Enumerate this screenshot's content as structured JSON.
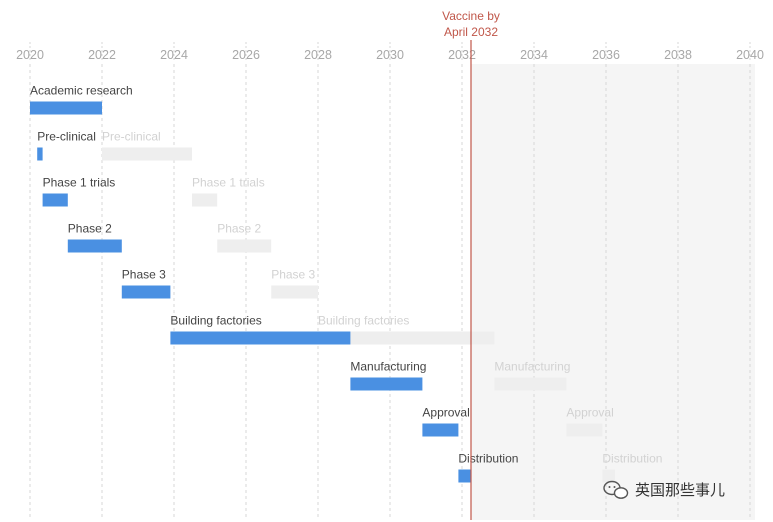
{
  "chart_data": {
    "type": "gantt",
    "x_axis": {
      "min": 2020,
      "max": 2040,
      "ticks": [
        2020,
        2022,
        2024,
        2026,
        2028,
        2030,
        2032,
        2034,
        2036,
        2038,
        2040
      ],
      "grid": "dashed vertical"
    },
    "marker": {
      "year": 2032.25,
      "label_lines": [
        "Vaccine by",
        "April 2032"
      ],
      "color": "#c0574a",
      "shade_after": true
    },
    "series": [
      {
        "key": "vaccine",
        "color": "#4a90e2"
      },
      {
        "key": "ghost",
        "color": "#eeeeee"
      }
    ],
    "stages": [
      {
        "name": "Academic research",
        "vaccine": [
          2020,
          2022
        ],
        "ghost": null
      },
      {
        "name": "Pre-clinical",
        "vaccine": [
          2020.2,
          2020.35
        ],
        "ghost": [
          2022,
          2024.5
        ]
      },
      {
        "name": "Phase 1 trials",
        "vaccine": [
          2020.35,
          2021.05
        ],
        "ghost": [
          2024.5,
          2025.2
        ]
      },
      {
        "name": "Phase 2",
        "vaccine": [
          2021.05,
          2022.55
        ],
        "ghost": [
          2025.2,
          2026.7
        ]
      },
      {
        "name": "Phase 3",
        "vaccine": [
          2022.55,
          2023.9
        ],
        "ghost": [
          2026.7,
          2028
        ]
      },
      {
        "name": "Building factories",
        "vaccine": [
          2023.9,
          2028.9
        ],
        "ghost": [
          2028,
          2032.9
        ]
      },
      {
        "name": "Manufacturing",
        "vaccine": [
          2028.9,
          2030.9
        ],
        "ghost": [
          2032.9,
          2034.9
        ]
      },
      {
        "name": "Approval",
        "vaccine": [
          2030.9,
          2031.9
        ],
        "ghost": [
          2034.9,
          2035.9
        ]
      },
      {
        "name": "Distribution",
        "vaccine": [
          2031.9,
          2032.25
        ],
        "ghost": [
          2035.9,
          2036.25
        ]
      }
    ]
  },
  "watermark": {
    "text": "英国那些事儿",
    "icon": "wechat-icon"
  }
}
